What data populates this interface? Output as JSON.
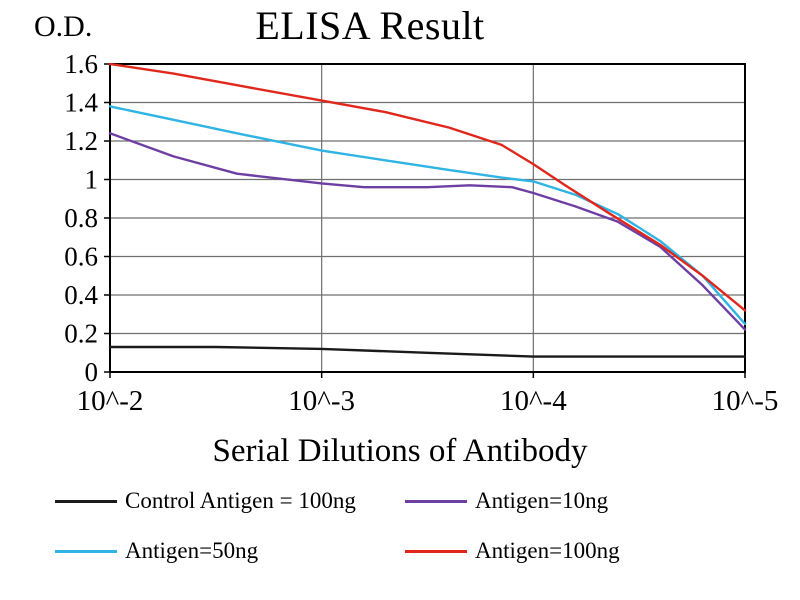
{
  "chart_data": {
    "type": "line",
    "title": "ELISA Result",
    "ylabel": "O.D.",
    "xlabel": "Serial Dilutions of Antibody",
    "x_tick_labels": [
      "10^-2",
      "10^-3",
      "10^-4",
      "10^-5"
    ],
    "y_ticks": [
      0,
      0.2,
      0.4,
      0.6,
      0.8,
      1,
      1.2,
      1.4,
      1.6
    ],
    "y_tick_labels": [
      "0",
      "0.2",
      "0.4",
      "0.6",
      "0.8",
      "1",
      "1.2",
      "1.4",
      "1.6"
    ],
    "ylim": [
      0,
      1.6
    ],
    "grid": true,
    "legend_position": "bottom",
    "colors": {
      "grid": "#6f6f6f",
      "border": "#000000",
      "background": "#ffffff"
    },
    "series": [
      {
        "name": "Control Antigen = 100ng",
        "color": "#1a1a1a",
        "x": [
          0,
          0.5,
          1.0,
          1.5,
          2.0,
          2.5,
          3.0
        ],
        "values": [
          0.13,
          0.13,
          0.12,
          0.1,
          0.08,
          0.08,
          0.08
        ]
      },
      {
        "name": "Antigen=10ng",
        "color": "#6e3fa3",
        "x": [
          0,
          0.3,
          0.6,
          1.0,
          1.2,
          1.5,
          1.7,
          1.9,
          2.0,
          2.2,
          2.4,
          2.6,
          2.8,
          3.0
        ],
        "values": [
          1.24,
          1.12,
          1.03,
          0.98,
          0.96,
          0.96,
          0.97,
          0.96,
          0.93,
          0.86,
          0.78,
          0.65,
          0.45,
          0.22
        ]
      },
      {
        "name": "Antigen=50ng",
        "color": "#2fb4e4",
        "x": [
          0,
          0.3,
          0.6,
          1.0,
          1.3,
          1.6,
          1.85,
          2.0,
          2.2,
          2.4,
          2.6,
          2.8,
          3.0
        ],
        "values": [
          1.38,
          1.31,
          1.24,
          1.15,
          1.1,
          1.05,
          1.01,
          0.99,
          0.92,
          0.82,
          0.68,
          0.5,
          0.25
        ]
      },
      {
        "name": "Antigen=100ng",
        "color": "#e0271c",
        "x": [
          0,
          0.3,
          0.6,
          1.0,
          1.3,
          1.6,
          1.85,
          2.0,
          2.15,
          2.35,
          2.6,
          2.8,
          3.0
        ],
        "values": [
          1.6,
          1.55,
          1.49,
          1.41,
          1.35,
          1.27,
          1.18,
          1.08,
          0.97,
          0.83,
          0.66,
          0.5,
          0.32
        ]
      }
    ]
  }
}
